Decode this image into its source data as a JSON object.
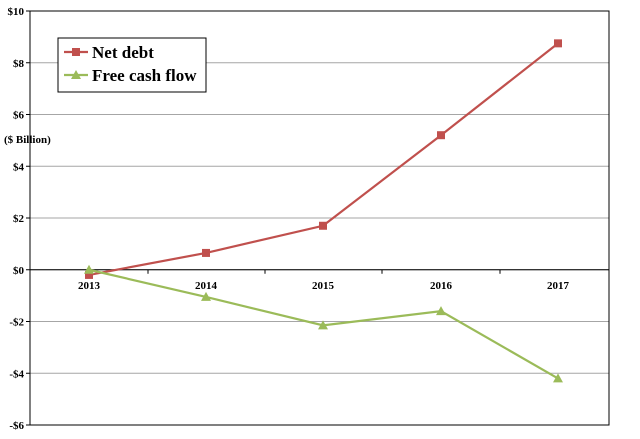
{
  "chart_data": {
    "type": "line",
    "categories": [
      "2013",
      "2014",
      "2015",
      "2016",
      "2017"
    ],
    "series": [
      {
        "name": "Net debt",
        "values": [
          -0.2,
          0.65,
          1.7,
          5.2,
          8.75
        ],
        "color": "#c0504d",
        "marker": "square"
      },
      {
        "name": "Free cash flow",
        "values": [
          0.0,
          -1.05,
          -2.15,
          -1.6,
          -4.2
        ],
        "color": "#9bbb59",
        "marker": "triangle"
      }
    ],
    "title": "",
    "ylabel": "($ Billion)",
    "ylim": [
      -6,
      10
    ],
    "yticks": [
      10,
      8,
      6,
      4,
      2,
      0,
      -2,
      -4,
      -6
    ],
    "ytick_labels": [
      "$10",
      "$8",
      "$6",
      "$4",
      "$2",
      "$0",
      "-$2",
      "-$4",
      "-$6"
    ],
    "grid": true,
    "legend_position": "top-left"
  }
}
